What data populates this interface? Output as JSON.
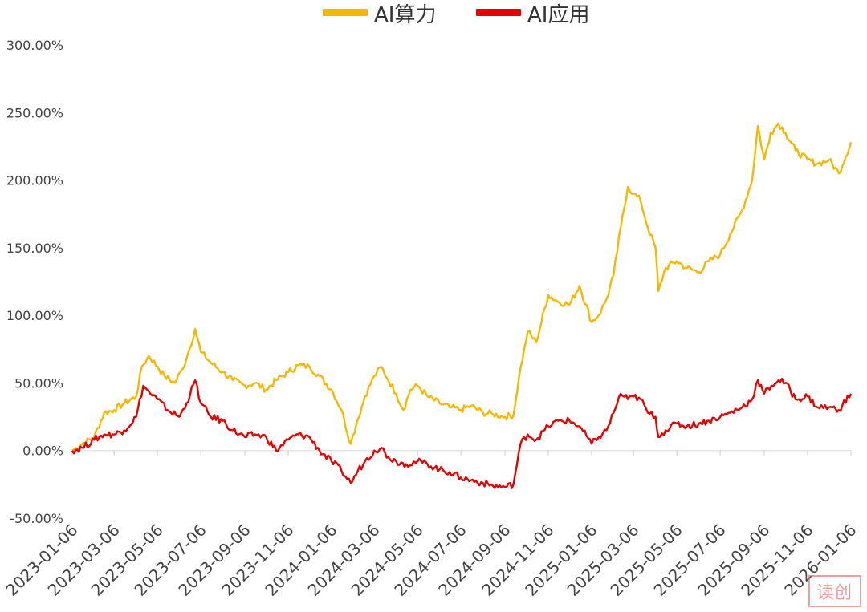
{
  "chart_data": {
    "type": "line",
    "title": "",
    "xlabel": "",
    "ylabel": "",
    "ylim": [
      -50,
      300
    ],
    "y_ticks": [
      "300.00%",
      "250.00%",
      "200.00%",
      "150.00%",
      "100.00%",
      "50.00%",
      "0.00%",
      "-50.00%"
    ],
    "x_ticks": [
      "2023-01-06",
      "2023-03-06",
      "2023-05-06",
      "2023-07-06",
      "2023-09-06",
      "2023-11-06",
      "2024-01-06",
      "2024-03-06",
      "2024-05-06",
      "2024-07-06",
      "2024-09-06",
      "2024-11-06",
      "2025-01-06",
      "2025-03-06",
      "2025-05-06",
      "2025-07-06",
      "2025-09-06",
      "2025-11-06",
      "2026-01-06"
    ],
    "x_range": [
      "2023-01-06",
      "2026-01-06"
    ],
    "legend_position": "top-center",
    "grid": false,
    "series": [
      {
        "name": "AI算力",
        "color": "#F5B800",
        "points": [
          [
            "2023-01-06",
            0
          ],
          [
            "2023-01-20",
            5
          ],
          [
            "2023-02-06",
            10
          ],
          [
            "2023-02-20",
            28
          ],
          [
            "2023-03-06",
            30
          ],
          [
            "2023-03-20",
            35
          ],
          [
            "2023-04-06",
            40
          ],
          [
            "2023-04-14",
            62
          ],
          [
            "2023-04-24",
            70
          ],
          [
            "2023-05-06",
            62
          ],
          [
            "2023-05-16",
            55
          ],
          [
            "2023-05-30",
            50
          ],
          [
            "2023-06-10",
            60
          ],
          [
            "2023-06-20",
            75
          ],
          [
            "2023-06-28",
            90
          ],
          [
            "2023-07-06",
            73
          ],
          [
            "2023-07-20",
            65
          ],
          [
            "2023-08-06",
            58
          ],
          [
            "2023-08-20",
            52
          ],
          [
            "2023-09-06",
            48
          ],
          [
            "2023-09-20",
            50
          ],
          [
            "2023-10-06",
            45
          ],
          [
            "2023-10-20",
            52
          ],
          [
            "2023-11-06",
            58
          ],
          [
            "2023-11-20",
            63
          ],
          [
            "2023-12-06",
            62
          ],
          [
            "2023-12-20",
            55
          ],
          [
            "2024-01-06",
            45
          ],
          [
            "2024-01-20",
            30
          ],
          [
            "2024-02-02",
            5
          ],
          [
            "2024-02-10",
            20
          ],
          [
            "2024-02-22",
            40
          ],
          [
            "2024-03-06",
            55
          ],
          [
            "2024-03-16",
            62
          ],
          [
            "2024-03-26",
            52
          ],
          [
            "2024-04-06",
            42
          ],
          [
            "2024-04-16",
            30
          ],
          [
            "2024-04-26",
            45
          ],
          [
            "2024-05-06",
            48
          ],
          [
            "2024-05-20",
            40
          ],
          [
            "2024-06-06",
            35
          ],
          [
            "2024-06-20",
            32
          ],
          [
            "2024-07-06",
            30
          ],
          [
            "2024-07-20",
            33
          ],
          [
            "2024-08-06",
            28
          ],
          [
            "2024-08-20",
            27
          ],
          [
            "2024-09-06",
            25
          ],
          [
            "2024-09-18",
            26
          ],
          [
            "2024-09-26",
            55
          ],
          [
            "2024-10-08",
            88
          ],
          [
            "2024-10-20",
            80
          ],
          [
            "2024-11-06",
            115
          ],
          [
            "2024-11-20",
            110
          ],
          [
            "2024-12-06",
            108
          ],
          [
            "2024-12-20",
            122
          ],
          [
            "2025-01-06",
            95
          ],
          [
            "2025-01-16",
            100
          ],
          [
            "2025-01-27",
            112
          ],
          [
            "2025-02-06",
            130
          ],
          [
            "2025-02-16",
            165
          ],
          [
            "2025-02-26",
            195
          ],
          [
            "2025-03-06",
            190
          ],
          [
            "2025-03-16",
            185
          ],
          [
            "2025-03-26",
            165
          ],
          [
            "2025-04-06",
            150
          ],
          [
            "2025-04-10",
            118
          ],
          [
            "2025-04-20",
            135
          ],
          [
            "2025-05-06",
            140
          ],
          [
            "2025-05-20",
            135
          ],
          [
            "2025-06-06",
            132
          ],
          [
            "2025-06-20",
            140
          ],
          [
            "2025-07-06",
            145
          ],
          [
            "2025-07-20",
            160
          ],
          [
            "2025-08-06",
            178
          ],
          [
            "2025-08-20",
            200
          ],
          [
            "2025-08-28",
            240
          ],
          [
            "2025-09-06",
            215
          ],
          [
            "2025-09-15",
            235
          ],
          [
            "2025-09-26",
            242
          ],
          [
            "2025-10-06",
            235
          ],
          [
            "2025-10-20",
            222
          ],
          [
            "2025-11-06",
            215
          ],
          [
            "2025-11-20",
            212
          ],
          [
            "2025-12-06",
            215
          ],
          [
            "2025-12-20",
            205
          ],
          [
            "2026-01-06",
            228
          ]
        ]
      },
      {
        "name": "AI应用",
        "color": "#E60000",
        "points": [
          [
            "2023-01-06",
            0
          ],
          [
            "2023-01-20",
            2
          ],
          [
            "2023-02-06",
            8
          ],
          [
            "2023-02-20",
            12
          ],
          [
            "2023-03-06",
            12
          ],
          [
            "2023-03-20",
            15
          ],
          [
            "2023-04-06",
            25
          ],
          [
            "2023-04-16",
            48
          ],
          [
            "2023-04-26",
            42
          ],
          [
            "2023-05-06",
            38
          ],
          [
            "2023-05-20",
            30
          ],
          [
            "2023-06-06",
            25
          ],
          [
            "2023-06-16",
            35
          ],
          [
            "2023-06-28",
            52
          ],
          [
            "2023-07-06",
            35
          ],
          [
            "2023-07-20",
            25
          ],
          [
            "2023-08-06",
            22
          ],
          [
            "2023-08-20",
            15
          ],
          [
            "2023-09-06",
            10
          ],
          [
            "2023-09-20",
            12
          ],
          [
            "2023-10-06",
            10
          ],
          [
            "2023-10-20",
            0
          ],
          [
            "2023-11-06",
            8
          ],
          [
            "2023-11-20",
            12
          ],
          [
            "2023-12-06",
            10
          ],
          [
            "2023-12-20",
            0
          ],
          [
            "2024-01-06",
            -8
          ],
          [
            "2024-01-20",
            -15
          ],
          [
            "2024-02-02",
            -24
          ],
          [
            "2024-02-12",
            -15
          ],
          [
            "2024-02-22",
            -8
          ],
          [
            "2024-03-06",
            0
          ],
          [
            "2024-03-16",
            2
          ],
          [
            "2024-03-26",
            -5
          ],
          [
            "2024-04-06",
            -8
          ],
          [
            "2024-04-20",
            -10
          ],
          [
            "2024-05-06",
            -8
          ],
          [
            "2024-05-20",
            -10
          ],
          [
            "2024-06-06",
            -14
          ],
          [
            "2024-06-20",
            -16
          ],
          [
            "2024-07-06",
            -20
          ],
          [
            "2024-07-20",
            -22
          ],
          [
            "2024-08-06",
            -24
          ],
          [
            "2024-08-20",
            -26
          ],
          [
            "2024-09-06",
            -27
          ],
          [
            "2024-09-18",
            -25
          ],
          [
            "2024-09-28",
            5
          ],
          [
            "2024-10-08",
            12
          ],
          [
            "2024-10-20",
            8
          ],
          [
            "2024-11-06",
            18
          ],
          [
            "2024-11-20",
            22
          ],
          [
            "2024-12-06",
            22
          ],
          [
            "2024-12-20",
            18
          ],
          [
            "2025-01-06",
            5
          ],
          [
            "2025-01-16",
            10
          ],
          [
            "2025-01-27",
            15
          ],
          [
            "2025-02-06",
            28
          ],
          [
            "2025-02-16",
            42
          ],
          [
            "2025-02-26",
            38
          ],
          [
            "2025-03-06",
            40
          ],
          [
            "2025-03-16",
            38
          ],
          [
            "2025-03-26",
            28
          ],
          [
            "2025-04-06",
            25
          ],
          [
            "2025-04-10",
            10
          ],
          [
            "2025-04-20",
            15
          ],
          [
            "2025-05-06",
            20
          ],
          [
            "2025-05-20",
            18
          ],
          [
            "2025-06-06",
            20
          ],
          [
            "2025-06-20",
            22
          ],
          [
            "2025-07-06",
            25
          ],
          [
            "2025-07-20",
            28
          ],
          [
            "2025-08-06",
            32
          ],
          [
            "2025-08-20",
            38
          ],
          [
            "2025-08-28",
            52
          ],
          [
            "2025-09-06",
            42
          ],
          [
            "2025-09-16",
            48
          ],
          [
            "2025-09-26",
            52
          ],
          [
            "2025-10-06",
            50
          ],
          [
            "2025-10-20",
            38
          ],
          [
            "2025-11-06",
            40
          ],
          [
            "2025-11-20",
            32
          ],
          [
            "2025-12-06",
            32
          ],
          [
            "2025-12-20",
            30
          ],
          [
            "2026-01-06",
            42
          ]
        ]
      }
    ],
    "watermark": "读创"
  }
}
